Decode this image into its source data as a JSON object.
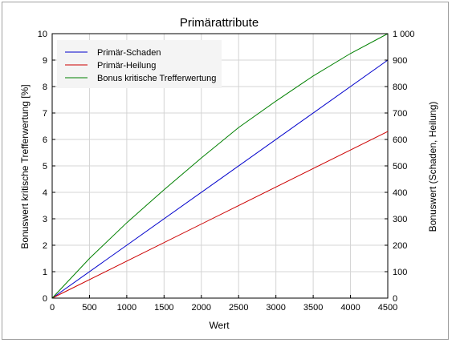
{
  "chart_data": {
    "type": "line",
    "title": "Primärattribute",
    "xlabel": "Wert",
    "ylabel_left": "Bonuswert kritische Trefferwertung [%]",
    "ylabel_right": "Bonuswert (Schaden, Heilung)",
    "xlim": [
      0,
      4500
    ],
    "ylim_left": [
      0,
      10
    ],
    "ylim_right": [
      0,
      1000
    ],
    "x_ticks": [
      "0",
      "500",
      "1000",
      "1500",
      "2000",
      "2500",
      "3000",
      "3500",
      "4000",
      "4500"
    ],
    "y_left_ticks": [
      "0",
      "1",
      "2",
      "3",
      "4",
      "5",
      "6",
      "7",
      "8",
      "9",
      "10"
    ],
    "y_right_ticks": [
      "0",
      "100",
      "200",
      "300",
      "400",
      "500",
      "600",
      "700",
      "800",
      "900",
      "1 000"
    ],
    "grid": true,
    "legend_position": "top-left",
    "series": [
      {
        "name": "Primär-Schaden",
        "color": "#0000cc",
        "axis": "right",
        "x": [
          0,
          4500
        ],
        "y": [
          0,
          900
        ]
      },
      {
        "name": "Primär-Heilung",
        "color": "#cc0000",
        "axis": "right",
        "x": [
          0,
          4500
        ],
        "y": [
          0,
          630
        ]
      },
      {
        "name": "Bonus kritische Trefferwertung",
        "color": "#008000",
        "axis": "left",
        "x": [
          0,
          500,
          1000,
          1500,
          2000,
          2500,
          3000,
          3500,
          4000,
          4500
        ],
        "y": [
          0,
          1.5,
          2.85,
          4.1,
          5.3,
          6.45,
          7.45,
          8.4,
          9.25,
          10.0
        ]
      }
    ]
  }
}
